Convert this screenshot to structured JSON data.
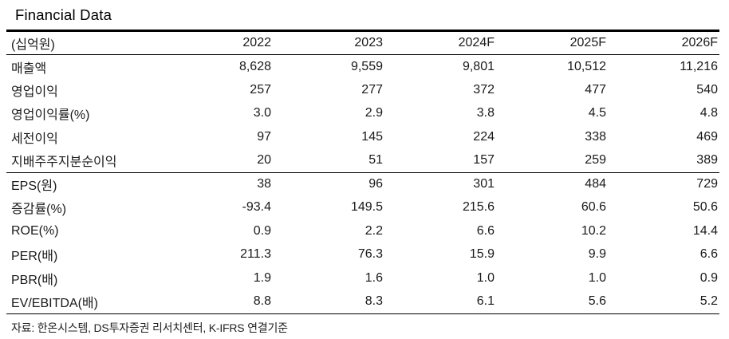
{
  "title": "Financial Data",
  "table": {
    "unit_label": "(십억원)",
    "columns": [
      "2022",
      "2023",
      "2024F",
      "2025F",
      "2026F"
    ],
    "rows": [
      {
        "label": "매출액",
        "values": [
          "8,628",
          "9,559",
          "9,801",
          "10,512",
          "11,216"
        ]
      },
      {
        "label": "영업이익",
        "values": [
          "257",
          "277",
          "372",
          "477",
          "540"
        ]
      },
      {
        "label": "영업이익률(%)",
        "values": [
          "3.0",
          "2.9",
          "3.8",
          "4.5",
          "4.8"
        ]
      },
      {
        "label": "세전이익",
        "values": [
          "97",
          "145",
          "224",
          "338",
          "469"
        ]
      },
      {
        "label": "지배주주지분순이익",
        "values": [
          "20",
          "51",
          "157",
          "259",
          "389"
        ]
      },
      {
        "label": "EPS(원)",
        "values": [
          "38",
          "96",
          "301",
          "484",
          "729"
        ]
      },
      {
        "label": "증감률(%)",
        "values": [
          "-93.4",
          "149.5",
          "215.6",
          "60.6",
          "50.6"
        ]
      },
      {
        "label": "ROE(%)",
        "values": [
          "0.9",
          "2.2",
          "6.6",
          "10.2",
          "14.4"
        ]
      },
      {
        "label": "PER(배)",
        "values": [
          "211.3",
          "76.3",
          "15.9",
          "9.9",
          "6.6"
        ]
      },
      {
        "label": "PBR(배)",
        "values": [
          "1.9",
          "1.6",
          "1.0",
          "1.0",
          "0.9"
        ]
      },
      {
        "label": "EV/EBITDA(배)",
        "values": [
          "8.8",
          "8.3",
          "6.1",
          "5.6",
          "5.2"
        ]
      }
    ]
  },
  "source": "자료: 한온시스템, DS투자증권 리서치센터, K-IFRS 연결기준"
}
